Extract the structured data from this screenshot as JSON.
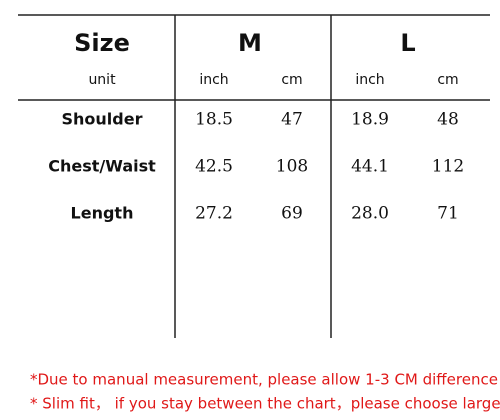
{
  "table": {
    "header": [
      "Size",
      "M",
      "L"
    ],
    "units": [
      "unit",
      "inch",
      "cm",
      "inch",
      "cm"
    ],
    "rows": [
      [
        "Shoulder",
        "18.5",
        "47",
        "18.9",
        "48"
      ],
      [
        "Chest/Waist",
        "42.5",
        "108",
        "44.1",
        "112"
      ],
      [
        "Length",
        "27.2",
        "69",
        "28.0",
        "71"
      ]
    ]
  },
  "notes": [
    "*Due to manual measurement, please allow 1-3 CM difference",
    "* Slim fit， if you stay between the chart，please choose larger size"
  ]
}
